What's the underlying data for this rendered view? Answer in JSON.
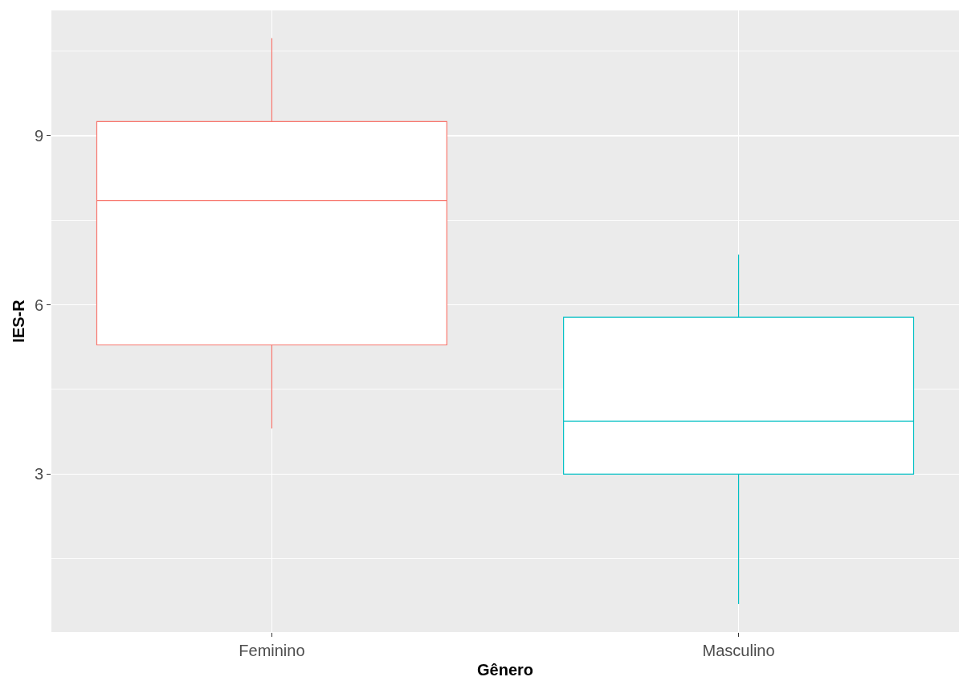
{
  "chart_data": {
    "type": "box",
    "xlabel": "Gênero",
    "ylabel": "IES-R",
    "categories": [
      "Feminino",
      "Masculino"
    ],
    "boxes": [
      {
        "low": 3.81,
        "q1": 5.29,
        "median": 7.85,
        "q3": 9.25,
        "high": 10.73
      },
      {
        "low": 0.7,
        "q1": 3.0,
        "median": 3.94,
        "q3": 5.78,
        "high": 6.89
      }
    ],
    "colors": [
      "#f8766d",
      "#00bfc4"
    ],
    "ylim": [
      0.2,
      11.22
    ],
    "yticks": [
      {
        "value": 1.5,
        "label": null
      },
      3,
      {
        "value": 4.5,
        "label": null
      },
      6,
      {
        "value": 7.5,
        "label": null
      },
      9,
      {
        "value": 10.5,
        "label": null
      }
    ],
    "grid": true
  }
}
